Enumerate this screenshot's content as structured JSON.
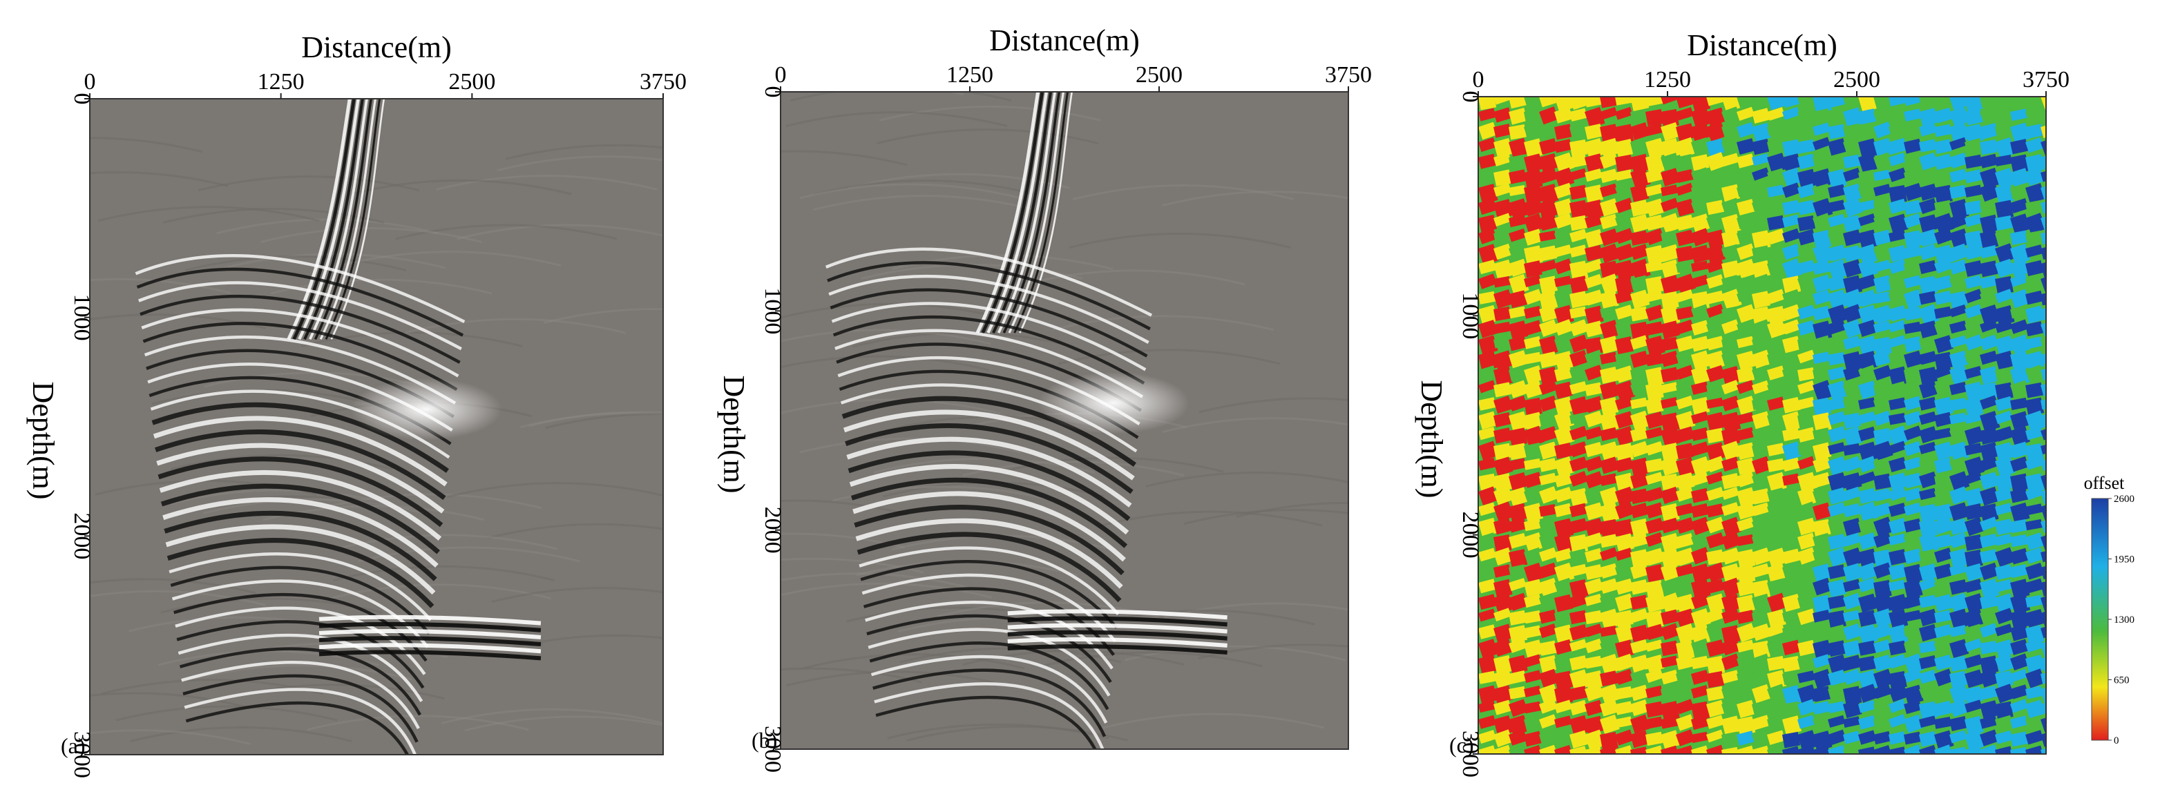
{
  "colors": {
    "seismic_background": "#7b7773",
    "seismic_positive": "#ffffff",
    "seismic_negative": "#0c0c0c",
    "offset_low": "#e21f1f",
    "offset_mid_low": "#f2e61a",
    "offset_mid": "#4dbb3d",
    "offset_mid_high": "#1fb0e6",
    "offset_high": "#1c3fa5"
  },
  "chart_data": [
    {
      "type": "heatmap",
      "panel_label": "(a)",
      "colormap": "grayscale seismic",
      "xlabel": "Distance(m)",
      "ylabel": "Depth(m)",
      "xlim": [
        0,
        3750
      ],
      "ylim": [
        0,
        3000
      ],
      "x_axis_position": "top",
      "xticks": [
        0,
        1250,
        2500,
        3750
      ],
      "xtick_labels": [
        "0",
        "1250",
        "2500",
        "3750"
      ],
      "yticks": [
        0,
        1000,
        2000,
        3000
      ],
      "ytick_labels": [
        "0",
        "1000",
        "2000",
        "3000"
      ],
      "grid": false
    },
    {
      "type": "heatmap",
      "panel_label": "(b)",
      "colormap": "grayscale seismic",
      "xlabel": "Distance(m)",
      "ylabel": "Depth(m)",
      "xlim": [
        0,
        3750
      ],
      "ylim": [
        0,
        3000
      ],
      "x_axis_position": "top",
      "xticks": [
        0,
        1250,
        2500,
        3750
      ],
      "xtick_labels": [
        "0",
        "1250",
        "2500",
        "3750"
      ],
      "yticks": [
        0,
        1000,
        2000,
        3000
      ],
      "ytick_labels": [
        "0",
        "1000",
        "2000",
        "3000"
      ],
      "grid": false
    },
    {
      "type": "heatmap",
      "panel_label": "(c)",
      "colormap": "jet (red = low offset, blue = high offset)",
      "xlabel": "Distance(m)",
      "ylabel": "Depth(m)",
      "xlim": [
        0,
        3750
      ],
      "ylim": [
        0,
        3000
      ],
      "x_axis_position": "top",
      "xticks": [
        0,
        1250,
        2500,
        3750
      ],
      "xtick_labels": [
        "0",
        "1250",
        "2500",
        "3750"
      ],
      "yticks": [
        0,
        1000,
        2000,
        3000
      ],
      "ytick_labels": [
        "0",
        "1000",
        "2000",
        "3000"
      ],
      "grid": false,
      "colorbar": {
        "title": "offset",
        "range": [
          0,
          2600
        ],
        "ticks": [
          0,
          650,
          1300,
          1950,
          2600
        ],
        "tick_labels": [
          "0",
          "650",
          "1300",
          "1950",
          "2600"
        ],
        "placement": "right"
      }
    }
  ]
}
